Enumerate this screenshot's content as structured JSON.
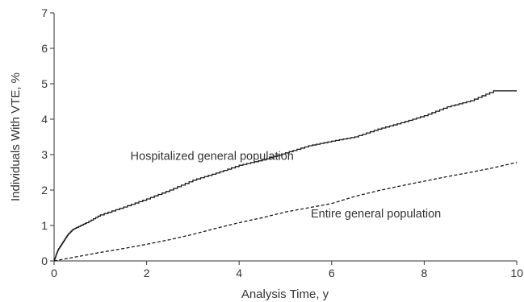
{
  "chart_data": {
    "type": "line",
    "title": "",
    "xlabel": "Analysis Time, y",
    "ylabel": "Individuals With VTE, %",
    "xlim": [
      0,
      10
    ],
    "ylim": [
      0,
      7
    ],
    "xticks": [
      0,
      2,
      4,
      6,
      8,
      10
    ],
    "yticks": [
      0,
      1,
      2,
      3,
      4,
      5,
      6,
      7
    ],
    "grid": false,
    "series": [
      {
        "name": "Hospitalized general population",
        "style": "solid",
        "color": "#1a1a1a",
        "x": [
          0,
          0.05,
          0.1,
          0.2,
          0.3,
          0.4,
          0.5,
          0.7,
          1.0,
          1.5,
          2.0,
          2.5,
          3.0,
          3.5,
          4.0,
          4.5,
          5.0,
          5.5,
          6.0,
          6.5,
          7.0,
          7.5,
          8.0,
          8.5,
          9.0,
          9.5,
          10.0
        ],
        "y": [
          0,
          0.2,
          0.35,
          0.55,
          0.75,
          0.88,
          0.95,
          1.08,
          1.3,
          1.52,
          1.75,
          2.0,
          2.28,
          2.48,
          2.7,
          2.85,
          3.05,
          3.25,
          3.38,
          3.5,
          3.72,
          3.9,
          4.1,
          4.35,
          4.52,
          4.8,
          4.8
        ]
      },
      {
        "name": "Entire general population",
        "style": "dashed",
        "color": "#1a1a1a",
        "x": [
          0,
          0.5,
          1.0,
          1.5,
          2.0,
          2.5,
          3.0,
          3.5,
          4.0,
          4.5,
          5.0,
          5.5,
          6.0,
          6.5,
          7.0,
          7.5,
          8.0,
          8.5,
          9.0,
          9.5,
          10.0
        ],
        "y": [
          0,
          0.12,
          0.24,
          0.35,
          0.47,
          0.6,
          0.75,
          0.92,
          1.08,
          1.22,
          1.38,
          1.5,
          1.62,
          1.82,
          1.98,
          2.12,
          2.25,
          2.38,
          2.5,
          2.63,
          2.78
        ]
      }
    ],
    "annotations": [
      {
        "text": "Hospitalized general population",
        "x": 1.65,
        "y": 2.85
      },
      {
        "text": "Entire general population",
        "x": 5.55,
        "y": 1.23
      }
    ]
  }
}
